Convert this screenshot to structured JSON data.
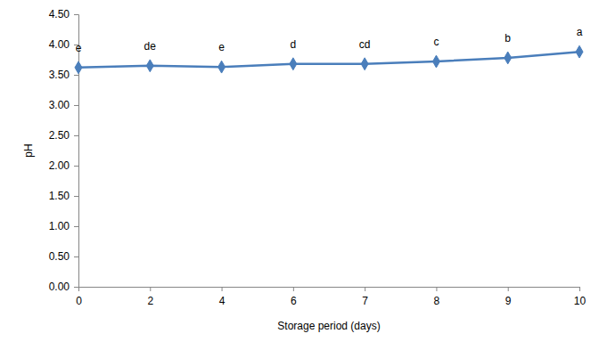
{
  "chart_data": {
    "type": "line",
    "x_label": "Storage period (days)",
    "y_label": "pH",
    "categories": [
      "0",
      "2",
      "4",
      "6",
      "7",
      "8",
      "9",
      "10"
    ],
    "values": [
      3.62,
      3.65,
      3.63,
      3.68,
      3.68,
      3.72,
      3.78,
      3.88
    ],
    "annotations": [
      "e",
      "de",
      "e",
      "d",
      "cd",
      "c",
      "b",
      "a"
    ],
    "color": "#4a7ebb",
    "marker": "diamond",
    "ylim": [
      0,
      4.5
    ],
    "yticks": [
      {
        "value": 0,
        "label": "0.00"
      },
      {
        "value": 0.5,
        "label": "0.50"
      },
      {
        "value": 1,
        "label": "1.00"
      },
      {
        "value": 1.5,
        "label": "1.50"
      },
      {
        "value": 2,
        "label": "2.00"
      },
      {
        "value": 2.5,
        "label": "2.50"
      },
      {
        "value": 3,
        "label": "3.00"
      },
      {
        "value": 3.5,
        "label": "3.50"
      },
      {
        "value": 4,
        "label": "4.00"
      },
      {
        "value": 4.5,
        "label": "4.50"
      }
    ],
    "grid": false
  }
}
